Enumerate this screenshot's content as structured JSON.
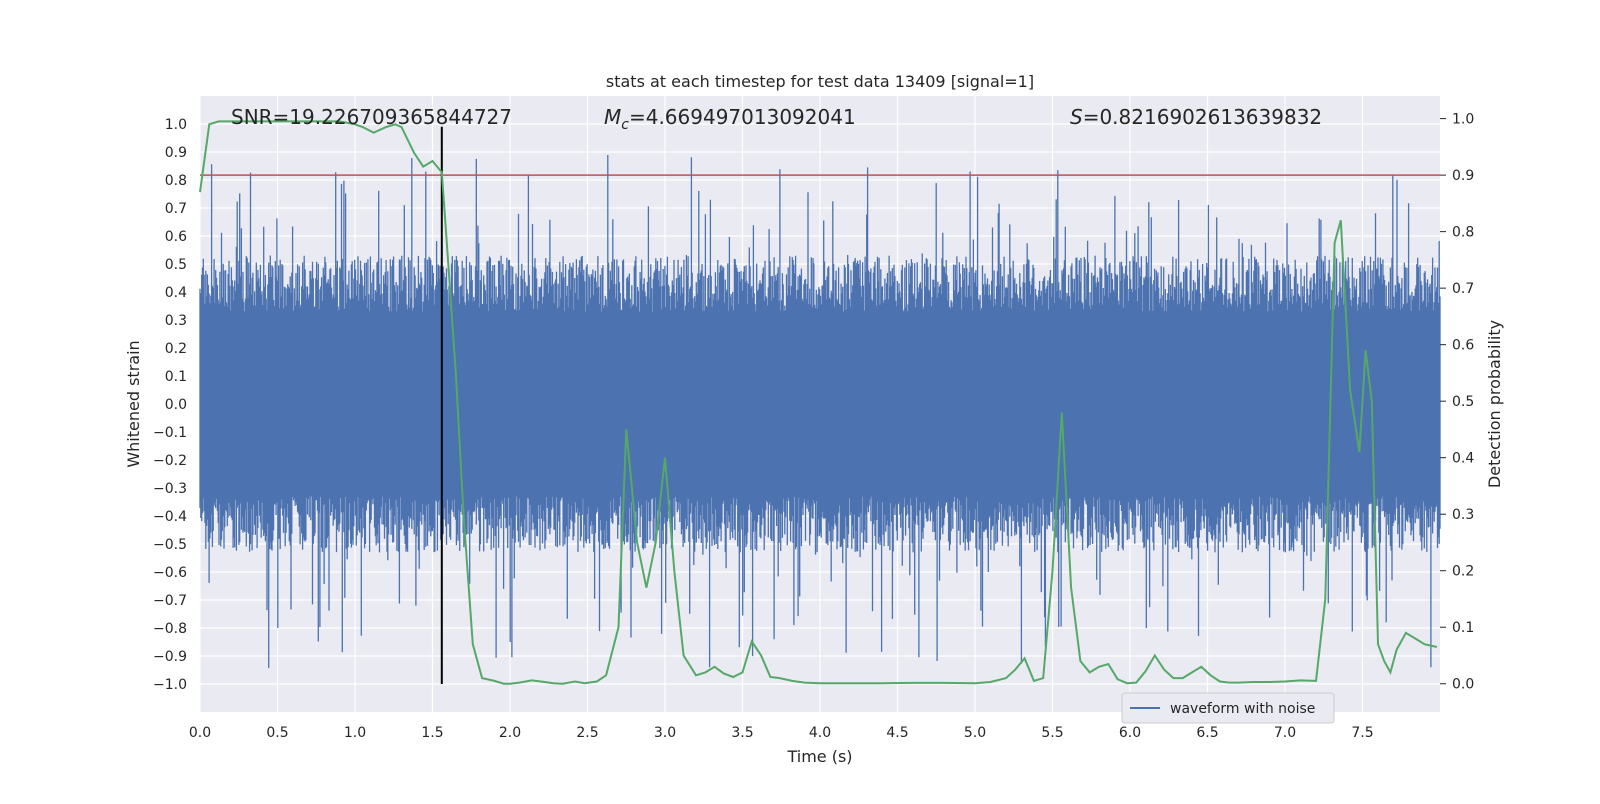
{
  "chart_data": {
    "type": "line",
    "title": "stats at each timestep for test data 13409 [signal=1]",
    "xlabel": "Time (s)",
    "ylabel_left": "Whitened strain",
    "ylabel_right": "Detection probability",
    "xlim": [
      0.0,
      8.0
    ],
    "ylim_left": [
      -1.1,
      1.1
    ],
    "ylim_right": [
      -0.05,
      1.04
    ],
    "grid": true,
    "x_ticks": [
      "0.0",
      "0.5",
      "1.0",
      "1.5",
      "2.0",
      "2.5",
      "3.0",
      "3.5",
      "4.0",
      "4.5",
      "5.0",
      "5.5",
      "6.0",
      "6.5",
      "7.0",
      "7.5"
    ],
    "x_tick_values": [
      0,
      0.5,
      1,
      1.5,
      2,
      2.5,
      3,
      3.5,
      4,
      4.5,
      5,
      5.5,
      6,
      6.5,
      7,
      7.5
    ],
    "y_ticks_left": [
      "1.0",
      "0.9",
      "0.8",
      "0.7",
      "0.6",
      "0.5",
      "0.4",
      "0.3",
      "0.2",
      "0.1",
      "0.0",
      "−0.1",
      "−0.2",
      "−0.3",
      "−0.4",
      "−0.5",
      "−0.6",
      "−0.7",
      "−0.8",
      "−0.9",
      "−1.0"
    ],
    "y_tick_values_left": [
      1.0,
      0.9,
      0.8,
      0.7,
      0.6,
      0.5,
      0.4,
      0.3,
      0.2,
      0.1,
      0.0,
      -0.1,
      -0.2,
      -0.3,
      -0.4,
      -0.5,
      -0.6,
      -0.7,
      -0.8,
      -0.9,
      -1.0
    ],
    "y_ticks_right": [
      "1.0",
      "0.9",
      "0.8",
      "0.7",
      "0.6",
      "0.5",
      "0.4",
      "0.3",
      "0.2",
      "0.1",
      "0.0"
    ],
    "y_tick_values_right": [
      1.0,
      0.9,
      0.8,
      0.7,
      0.6,
      0.5,
      0.4,
      0.3,
      0.2,
      0.1,
      0.0
    ],
    "annotations": {
      "snr": "SNR=19.226709365844727",
      "mc_symbol": "M",
      "mc_sub": "c",
      "mc_value": "=4.669497013092041",
      "s_symbol": "S",
      "s_value": "=0.8216902613639832"
    },
    "threshold_right": 0.9,
    "event_time": 1.56,
    "series": [
      {
        "name": "waveform with noise",
        "axis": "left",
        "color": "#4c72b0",
        "description": "dense whitened strain noise, amplitude ~±0.5 with spikes to ~±1.0"
      },
      {
        "name": "detection probability",
        "axis": "right",
        "color": "#55a868",
        "x": [
          0.0,
          0.06,
          0.12,
          0.2,
          0.3,
          0.5,
          0.7,
          0.9,
          1.0,
          1.05,
          1.12,
          1.2,
          1.26,
          1.3,
          1.38,
          1.44,
          1.5,
          1.56,
          1.6,
          1.65,
          1.7,
          1.76,
          1.82,
          1.9,
          1.96,
          2.0,
          2.06,
          2.14,
          2.2,
          2.28,
          2.34,
          2.42,
          2.48,
          2.56,
          2.62,
          2.7,
          2.75,
          2.82,
          2.88,
          2.94,
          3.0,
          3.06,
          3.12,
          3.2,
          3.26,
          3.32,
          3.38,
          3.44,
          3.5,
          3.56,
          3.62,
          3.68,
          3.74,
          3.82,
          3.9,
          4.0,
          4.2,
          4.4,
          4.6,
          4.8,
          5.0,
          5.1,
          5.2,
          5.26,
          5.32,
          5.38,
          5.44,
          5.5,
          5.56,
          5.62,
          5.68,
          5.74,
          5.8,
          5.86,
          5.92,
          5.98,
          6.04,
          6.1,
          6.16,
          6.22,
          6.28,
          6.34,
          6.4,
          6.46,
          6.52,
          6.58,
          6.64,
          6.7,
          6.8,
          6.9,
          7.0,
          7.1,
          7.2,
          7.26,
          7.32,
          7.36,
          7.42,
          7.48,
          7.52,
          7.56,
          7.6,
          7.64,
          7.68,
          7.72,
          7.78,
          7.84,
          7.9,
          7.98
        ],
        "y": [
          0.87,
          0.99,
          0.995,
          0.995,
          0.995,
          0.995,
          0.995,
          0.995,
          0.99,
          0.985,
          0.975,
          0.985,
          0.99,
          0.985,
          0.94,
          0.915,
          0.925,
          0.905,
          0.75,
          0.55,
          0.3,
          0.07,
          0.01,
          0.005,
          0.0,
          0.0,
          0.002,
          0.006,
          0.004,
          0.001,
          0.0,
          0.004,
          0.001,
          0.004,
          0.015,
          0.1,
          0.45,
          0.25,
          0.17,
          0.25,
          0.4,
          0.2,
          0.05,
          0.015,
          0.02,
          0.03,
          0.018,
          0.012,
          0.02,
          0.075,
          0.05,
          0.012,
          0.01,
          0.005,
          0.002,
          0.001,
          0.001,
          0.001,
          0.0015,
          0.0015,
          0.001,
          0.003,
          0.01,
          0.025,
          0.045,
          0.005,
          0.01,
          0.2,
          0.48,
          0.17,
          0.04,
          0.02,
          0.03,
          0.035,
          0.008,
          0.001,
          0.002,
          0.022,
          0.05,
          0.025,
          0.01,
          0.01,
          0.02,
          0.03,
          0.015,
          0.004,
          0.002,
          0.002,
          0.003,
          0.003,
          0.004,
          0.006,
          0.005,
          0.15,
          0.78,
          0.82,
          0.52,
          0.41,
          0.59,
          0.5,
          0.07,
          0.04,
          0.02,
          0.06,
          0.09,
          0.08,
          0.07,
          0.065
        ]
      },
      {
        "name": "threshold",
        "axis": "right",
        "color": "#c44e52"
      },
      {
        "name": "event marker",
        "color": "#000000"
      }
    ],
    "legend": {
      "position": "lower-center-right",
      "label": "waveform with noise"
    }
  }
}
